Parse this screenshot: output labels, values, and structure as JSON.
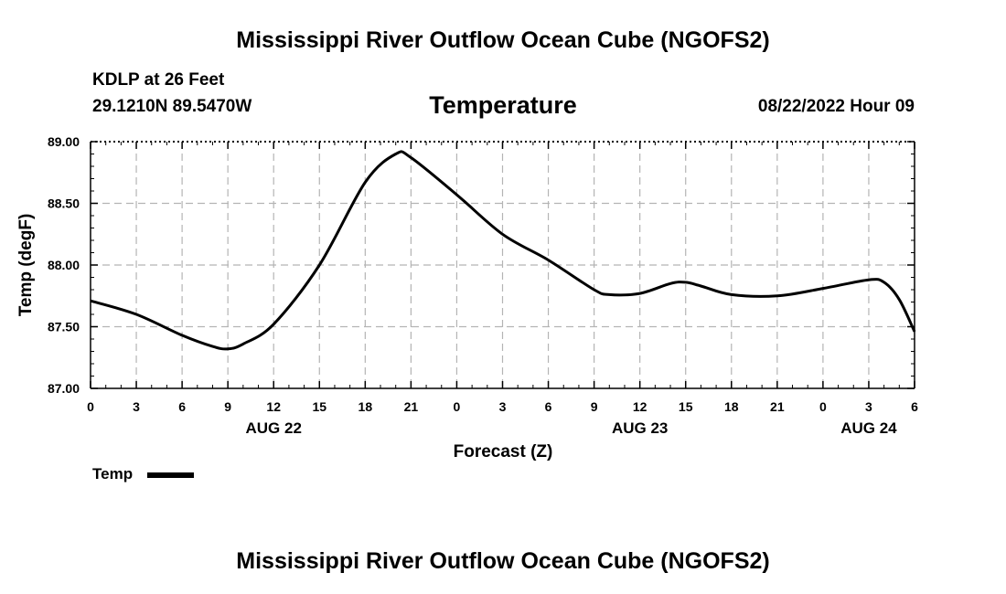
{
  "header": {
    "title": "Mississippi River Outflow Ocean Cube (NGOFS2)",
    "station": "KDLP at 26 Feet",
    "coords": "29.1210N  89.5470W",
    "chart_title": "Temperature",
    "timestamp": "08/22/2022 Hour 09"
  },
  "legend": {
    "label": "Temp"
  },
  "footer": {
    "title": "Mississippi River Outflow Ocean Cube (NGOFS2)"
  },
  "chart_data": {
    "type": "line",
    "title": "Temperature",
    "xlabel": "Forecast (Z)",
    "ylabel": "Temp (degF)",
    "ylim": [
      87.0,
      89.0
    ],
    "xlim": [
      0,
      54
    ],
    "yticks": [
      "87.00",
      "87.50",
      "88.00",
      "88.50",
      "89.00"
    ],
    "xticks": [
      {
        "h": 0,
        "label": "0"
      },
      {
        "h": 3,
        "label": "3"
      },
      {
        "h": 6,
        "label": "6"
      },
      {
        "h": 9,
        "label": "9"
      },
      {
        "h": 12,
        "label": "12"
      },
      {
        "h": 15,
        "label": "15"
      },
      {
        "h": 18,
        "label": "18"
      },
      {
        "h": 21,
        "label": "21"
      },
      {
        "h": 24,
        "label": "0"
      },
      {
        "h": 27,
        "label": "3"
      },
      {
        "h": 30,
        "label": "6"
      },
      {
        "h": 33,
        "label": "9"
      },
      {
        "h": 36,
        "label": "12"
      },
      {
        "h": 39,
        "label": "15"
      },
      {
        "h": 42,
        "label": "18"
      },
      {
        "h": 45,
        "label": "21"
      },
      {
        "h": 48,
        "label": "0"
      },
      {
        "h": 51,
        "label": "3"
      },
      {
        "h": 54,
        "label": "6"
      }
    ],
    "date_labels": [
      {
        "h": 12,
        "label": "AUG 22"
      },
      {
        "h": 36,
        "label": "AUG 23"
      },
      {
        "h": 51,
        "label": "AUG 24"
      }
    ],
    "grid": true,
    "series": [
      {
        "name": "Temp",
        "color": "#000000",
        "x": [
          0,
          3,
          6,
          8,
          9,
          10,
          12,
          15,
          18,
          20,
          21,
          24,
          27,
          30,
          33,
          34,
          36,
          38,
          39,
          40,
          42,
          45,
          48,
          51,
          52,
          53,
          54
        ],
        "y": [
          87.71,
          87.6,
          87.43,
          87.34,
          87.32,
          87.36,
          87.52,
          88.0,
          88.67,
          88.9,
          88.87,
          88.57,
          88.25,
          88.04,
          87.8,
          87.76,
          87.77,
          87.85,
          87.86,
          87.83,
          87.76,
          87.75,
          87.81,
          87.88,
          87.86,
          87.72,
          87.46
        ]
      }
    ]
  }
}
